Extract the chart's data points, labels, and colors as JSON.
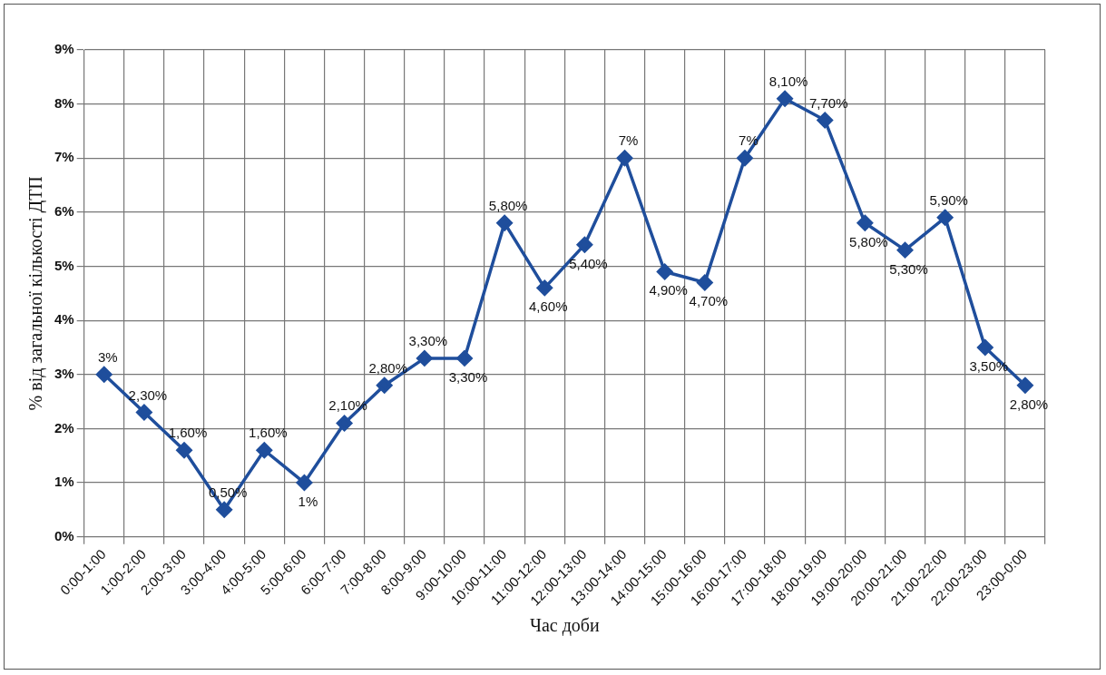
{
  "chart_data": {
    "type": "line",
    "xlabel": "Час доби",
    "ylabel": "% від загальної кількості ДТП",
    "categories": [
      "0:00-1:00",
      "1:00-2:00",
      "2:00-3:00",
      "3:00-4:00",
      "4:00-5:00",
      "5:00-6:00",
      "6:00-7:00",
      "7:00-8:00",
      "8:00-9:00",
      "9:00-10:00",
      "10:00-11:00",
      "11:00-12:00",
      "12:00-13:00",
      "13:00-14:00",
      "14:00-15:00",
      "15:00-16:00",
      "16:00-17:00",
      "17:00-18:00",
      "18:00-19:00",
      "19:00-20:00",
      "20:00-21:00",
      "21:00-22:00",
      "22:00-23:00",
      "23:00-0:00"
    ],
    "values": [
      3,
      2.3,
      1.6,
      0.5,
      1.6,
      1,
      2.1,
      2.8,
      3.3,
      3.3,
      5.8,
      4.6,
      5.4,
      7,
      4.9,
      4.7,
      7,
      8.1,
      7.7,
      5.8,
      5.3,
      5.9,
      3.5,
      2.8
    ],
    "value_labels": [
      "3%",
      "2,30%",
      "1,60%",
      "0,50%",
      "1,60%",
      "1%",
      "2,10%",
      "2,80%",
      "3,30%",
      "3,30%",
      "5,80%",
      "4,60%",
      "5,40%",
      "7%",
      "4,90%",
      "4,70%",
      "7%",
      "8,10%",
      "7,70%",
      "5,80%",
      "5,30%",
      "5,90%",
      "3,50%",
      "2,80%"
    ],
    "color": "#1f4e9c",
    "ylim": [
      0,
      9
    ],
    "yticks": [
      {
        "value": 0,
        "label": "0%"
      },
      {
        "value": 1,
        "label": "1%"
      },
      {
        "value": 2,
        "label": "2%"
      },
      {
        "value": 3,
        "label": "3%"
      },
      {
        "value": 4,
        "label": "4%"
      },
      {
        "value": 5,
        "label": "5%"
      },
      {
        "value": 6,
        "label": "6%"
      },
      {
        "value": 7,
        "label": "7%"
      },
      {
        "value": 8,
        "label": "8%"
      },
      {
        "value": 9,
        "label": "9%"
      }
    ],
    "grid": true,
    "marker": "diamond",
    "line_style": "solid",
    "legend": false
  }
}
